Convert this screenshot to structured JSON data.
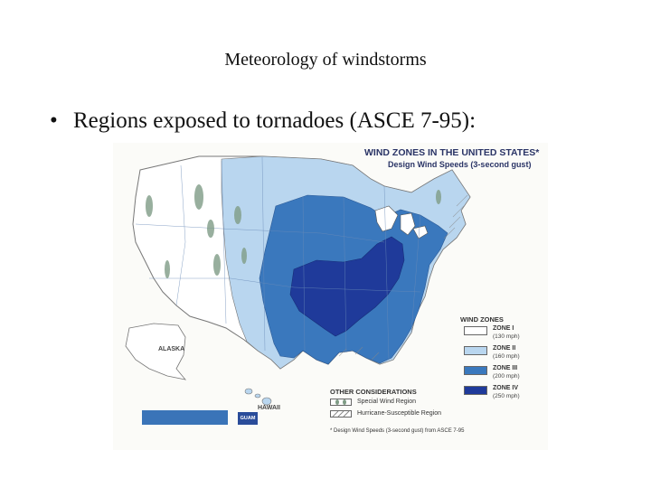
{
  "slide": {
    "title": "Meteorology of windstorms",
    "bullet": "•",
    "bullet_text": "Regions exposed to tornadoes (ASCE 7-95):"
  },
  "map": {
    "heading": "WIND ZONES IN THE UNITED STATES*",
    "subheading": "Design Wind Speeds (3-second gust)",
    "legend_title": "WIND ZONES",
    "zones": [
      {
        "label": "ZONE I",
        "speed": "(130 mph)",
        "color": "#ffffff"
      },
      {
        "label": "ZONE II",
        "speed": "(160 mph)",
        "color": "#b9d6ef"
      },
      {
        "label": "ZONE III",
        "speed": "(200 mph)",
        "color": "#3a78bd"
      },
      {
        "label": "ZONE IV",
        "speed": "(250 mph)",
        "color": "#1f3a9a"
      }
    ],
    "other_title": "OTHER CONSIDERATIONS",
    "other_items": [
      "Special Wind Region",
      "Hurricane-Susceptible Region"
    ],
    "footnote": "* Design Wind Speeds (3-second gust) from ASCE 7-95",
    "alaska_label": "ALASKA",
    "hawaii_label": "HAWAII",
    "guam_label": "GUAM"
  }
}
